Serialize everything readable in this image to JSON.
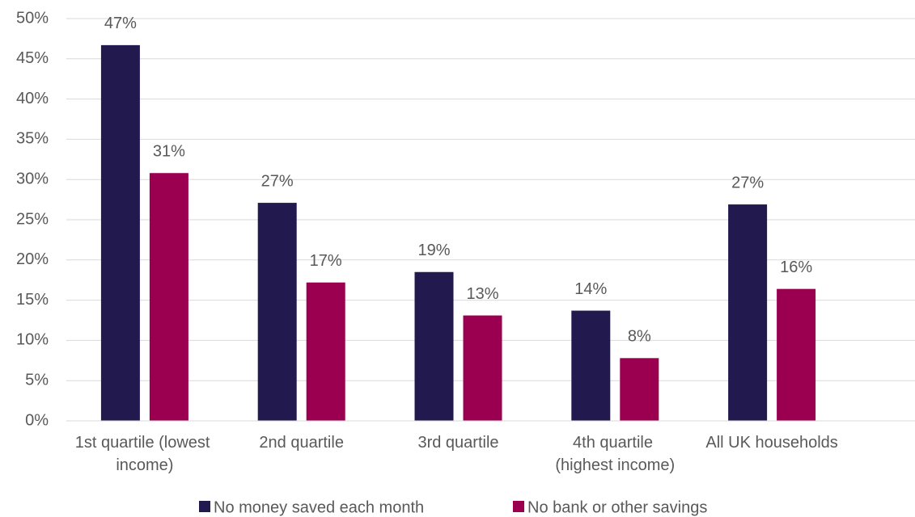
{
  "chart_data": {
    "type": "bar",
    "categories": [
      "1st quartile (lowest income)",
      "2nd quartile",
      "3rd quartile",
      "4th quartile (highest income)",
      "All UK households"
    ],
    "series": [
      {
        "name": "No money saved each month",
        "color": "#221a4f",
        "values": [
          46.7,
          27.1,
          18.5,
          13.7,
          26.9
        ],
        "value_labels": [
          "47%",
          "27%",
          "19%",
          "14%",
          "27%"
        ]
      },
      {
        "name": "No bank or other savings",
        "color": "#9b0050",
        "values": [
          30.8,
          17.2,
          13.1,
          7.8,
          16.4
        ],
        "value_labels": [
          "31%",
          "17%",
          "13%",
          "8%",
          "16%"
        ]
      }
    ],
    "ylim": [
      0,
      50
    ],
    "yticks": [
      {
        "value": 0,
        "label": "0%"
      },
      {
        "value": 5,
        "label": "5%"
      },
      {
        "value": 10,
        "label": "10%"
      },
      {
        "value": 15,
        "label": "15%"
      },
      {
        "value": 20,
        "label": "20%"
      },
      {
        "value": 25,
        "label": "25%"
      },
      {
        "value": 30,
        "label": "30%"
      },
      {
        "value": 35,
        "label": "35%"
      },
      {
        "value": 40,
        "label": "40%"
      },
      {
        "value": 45,
        "label": "45%"
      },
      {
        "value": 50,
        "label": "50%"
      }
    ],
    "grid": true,
    "legend": "bottom"
  }
}
